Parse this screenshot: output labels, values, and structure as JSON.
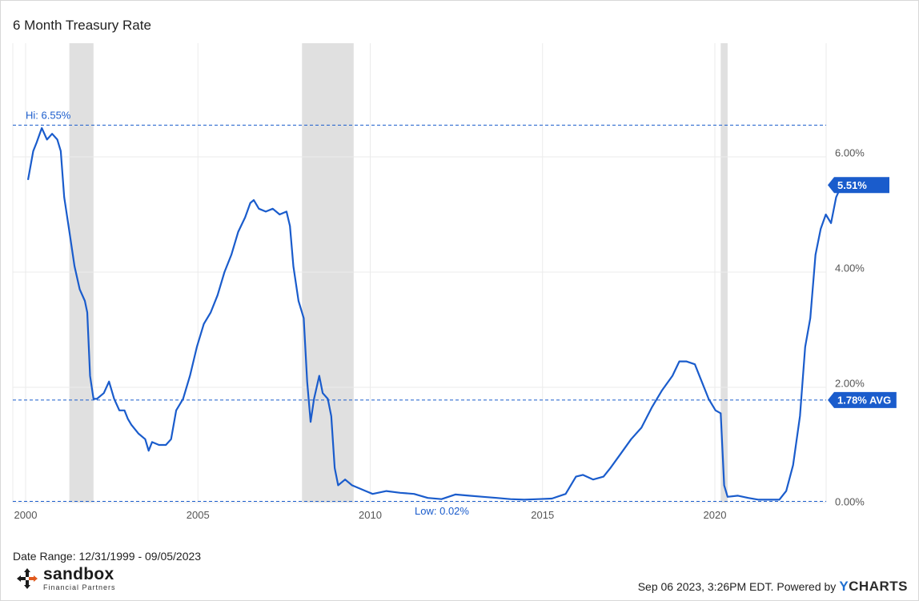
{
  "chart_data": {
    "type": "line",
    "title": "6 Month Treasury Rate",
    "x_range": [
      "1999-12-31",
      "2023-09-05"
    ],
    "y_range": [
      0,
      6.55
    ],
    "y_ticks": [
      {
        "value": 0,
        "label": "0.00%"
      },
      {
        "value": 2,
        "label": "2.00%"
      },
      {
        "value": 4,
        "label": "4.00%"
      },
      {
        "value": 6,
        "label": "6.00%"
      }
    ],
    "x_ticks": [
      {
        "year": 2000,
        "label": "2000"
      },
      {
        "year": 2005,
        "label": "2005"
      },
      {
        "year": 2010,
        "label": "2010"
      },
      {
        "year": 2015,
        "label": "2015"
      },
      {
        "year": 2020,
        "label": "2020"
      }
    ],
    "recessions": [
      {
        "start": 2001.2,
        "end": 2001.9
      },
      {
        "start": 2007.95,
        "end": 2009.45
      },
      {
        "start": 2020.1,
        "end": 2020.3
      }
    ],
    "reference_lines": [
      {
        "name": "hi",
        "value": 6.55,
        "label": "Hi: 6.55%"
      },
      {
        "name": "avg",
        "value": 1.78,
        "label": "1.78% AVG"
      },
      {
        "name": "low",
        "value": 0.02,
        "label": "Low: 0.02%"
      }
    ],
    "last_value": {
      "value": 5.51,
      "label": "5.51%"
    },
    "series": [
      {
        "color": "#1a5ccc",
        "points": [
          [
            2000.0,
            5.6
          ],
          [
            2000.15,
            6.1
          ],
          [
            2000.25,
            6.25
          ],
          [
            2000.4,
            6.5
          ],
          [
            2000.55,
            6.3
          ],
          [
            2000.7,
            6.4
          ],
          [
            2000.85,
            6.3
          ],
          [
            2000.95,
            6.1
          ],
          [
            2001.05,
            5.3
          ],
          [
            2001.2,
            4.7
          ],
          [
            2001.35,
            4.1
          ],
          [
            2001.5,
            3.7
          ],
          [
            2001.65,
            3.5
          ],
          [
            2001.72,
            3.3
          ],
          [
            2001.8,
            2.2
          ],
          [
            2001.9,
            1.8
          ],
          [
            2002.0,
            1.8
          ],
          [
            2002.2,
            1.9
          ],
          [
            2002.35,
            2.1
          ],
          [
            2002.5,
            1.8
          ],
          [
            2002.65,
            1.6
          ],
          [
            2002.8,
            1.6
          ],
          [
            2002.9,
            1.45
          ],
          [
            2003.0,
            1.35
          ],
          [
            2003.2,
            1.2
          ],
          [
            2003.4,
            1.1
          ],
          [
            2003.5,
            0.9
          ],
          [
            2003.6,
            1.05
          ],
          [
            2003.8,
            1.0
          ],
          [
            2004.0,
            1.0
          ],
          [
            2004.15,
            1.1
          ],
          [
            2004.3,
            1.6
          ],
          [
            2004.5,
            1.8
          ],
          [
            2004.7,
            2.2
          ],
          [
            2004.9,
            2.7
          ],
          [
            2005.1,
            3.1
          ],
          [
            2005.3,
            3.3
          ],
          [
            2005.5,
            3.6
          ],
          [
            2005.7,
            4.0
          ],
          [
            2005.9,
            4.3
          ],
          [
            2006.1,
            4.7
          ],
          [
            2006.3,
            4.95
          ],
          [
            2006.45,
            5.2
          ],
          [
            2006.55,
            5.25
          ],
          [
            2006.7,
            5.1
          ],
          [
            2006.9,
            5.05
          ],
          [
            2007.1,
            5.1
          ],
          [
            2007.3,
            5.0
          ],
          [
            2007.5,
            5.05
          ],
          [
            2007.6,
            4.8
          ],
          [
            2007.7,
            4.1
          ],
          [
            2007.85,
            3.5
          ],
          [
            2008.0,
            3.2
          ],
          [
            2008.1,
            2.1
          ],
          [
            2008.2,
            1.4
          ],
          [
            2008.3,
            1.8
          ],
          [
            2008.45,
            2.2
          ],
          [
            2008.55,
            1.9
          ],
          [
            2008.7,
            1.8
          ],
          [
            2008.8,
            1.5
          ],
          [
            2008.9,
            0.6
          ],
          [
            2009.0,
            0.3
          ],
          [
            2009.2,
            0.4
          ],
          [
            2009.4,
            0.3
          ],
          [
            2009.6,
            0.25
          ],
          [
            2009.8,
            0.2
          ],
          [
            2010.0,
            0.15
          ],
          [
            2010.4,
            0.2
          ],
          [
            2010.8,
            0.17
          ],
          [
            2011.2,
            0.15
          ],
          [
            2011.6,
            0.08
          ],
          [
            2012.0,
            0.06
          ],
          [
            2012.4,
            0.14
          ],
          [
            2012.8,
            0.12
          ],
          [
            2013.2,
            0.1
          ],
          [
            2013.6,
            0.08
          ],
          [
            2014.0,
            0.06
          ],
          [
            2014.4,
            0.05
          ],
          [
            2014.8,
            0.06
          ],
          [
            2015.2,
            0.07
          ],
          [
            2015.6,
            0.15
          ],
          [
            2015.9,
            0.45
          ],
          [
            2016.1,
            0.48
          ],
          [
            2016.4,
            0.4
          ],
          [
            2016.7,
            0.45
          ],
          [
            2016.9,
            0.6
          ],
          [
            2017.2,
            0.85
          ],
          [
            2017.5,
            1.1
          ],
          [
            2017.8,
            1.3
          ],
          [
            2018.1,
            1.65
          ],
          [
            2018.4,
            1.95
          ],
          [
            2018.7,
            2.2
          ],
          [
            2018.9,
            2.45
          ],
          [
            2019.1,
            2.45
          ],
          [
            2019.35,
            2.4
          ],
          [
            2019.55,
            2.1
          ],
          [
            2019.75,
            1.8
          ],
          [
            2019.95,
            1.6
          ],
          [
            2020.1,
            1.55
          ],
          [
            2020.2,
            0.3
          ],
          [
            2020.3,
            0.1
          ],
          [
            2020.6,
            0.12
          ],
          [
            2020.9,
            0.08
          ],
          [
            2021.2,
            0.05
          ],
          [
            2021.5,
            0.05
          ],
          [
            2021.8,
            0.05
          ],
          [
            2022.0,
            0.2
          ],
          [
            2022.2,
            0.65
          ],
          [
            2022.4,
            1.5
          ],
          [
            2022.55,
            2.7
          ],
          [
            2022.7,
            3.2
          ],
          [
            2022.85,
            4.3
          ],
          [
            2023.0,
            4.75
          ],
          [
            2023.15,
            5.0
          ],
          [
            2023.3,
            4.85
          ],
          [
            2023.45,
            5.3
          ],
          [
            2023.6,
            5.5
          ],
          [
            2023.68,
            5.51
          ]
        ]
      }
    ]
  },
  "footer": {
    "date_range": "Date Range: 12/31/1999 - 09/05/2023",
    "timestamp": "Sep 06 2023, 3:26PM EDT.",
    "powered_by": "Powered by",
    "ycharts_y": "Y",
    "ycharts_rest": "CHARTS"
  },
  "logo": {
    "main": "sandbox",
    "sub": "Financial Partners",
    "icon": "compass-arrows-icon"
  }
}
